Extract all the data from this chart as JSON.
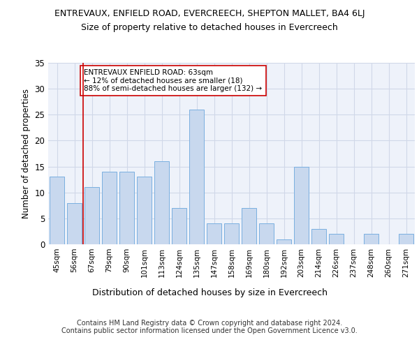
{
  "title": "ENTREVAUX, ENFIELD ROAD, EVERCREECH, SHEPTON MALLET, BA4 6LJ",
  "subtitle": "Size of property relative to detached houses in Evercreech",
  "xlabel_bottom": "Distribution of detached houses by size in Evercreech",
  "ylabel": "Number of detached properties",
  "categories": [
    "45sqm",
    "56sqm",
    "67sqm",
    "79sqm",
    "90sqm",
    "101sqm",
    "113sqm",
    "124sqm",
    "135sqm",
    "147sqm",
    "158sqm",
    "169sqm",
    "180sqm",
    "192sqm",
    "203sqm",
    "214sqm",
    "226sqm",
    "237sqm",
    "248sqm",
    "260sqm",
    "271sqm"
  ],
  "values": [
    13,
    8,
    11,
    14,
    14,
    13,
    16,
    7,
    26,
    4,
    4,
    7,
    4,
    1,
    15,
    3,
    2,
    0,
    2,
    0,
    2
  ],
  "bar_color": "#c8d8ee",
  "bar_edge_color": "#7aafe0",
  "background_color": "#eef2fa",
  "grid_color": "#d0d8e8",
  "vline_x": 1.5,
  "vline_color": "#cc0000",
  "annotation_text": "ENTREVAUX ENFIELD ROAD: 63sqm\n← 12% of detached houses are smaller (18)\n88% of semi-detached houses are larger (132) →",
  "annotation_box_color": "#ffffff",
  "annotation_box_edge": "#cc0000",
  "annotation_fontsize": 7.5,
  "ylim": [
    0,
    35
  ],
  "yticks": [
    0,
    5,
    10,
    15,
    20,
    25,
    30,
    35
  ],
  "footer": "Contains HM Land Registry data © Crown copyright and database right 2024.\nContains public sector information licensed under the Open Government Licence v3.0.",
  "title_fontsize": 9,
  "subtitle_fontsize": 9,
  "footer_fontsize": 7
}
